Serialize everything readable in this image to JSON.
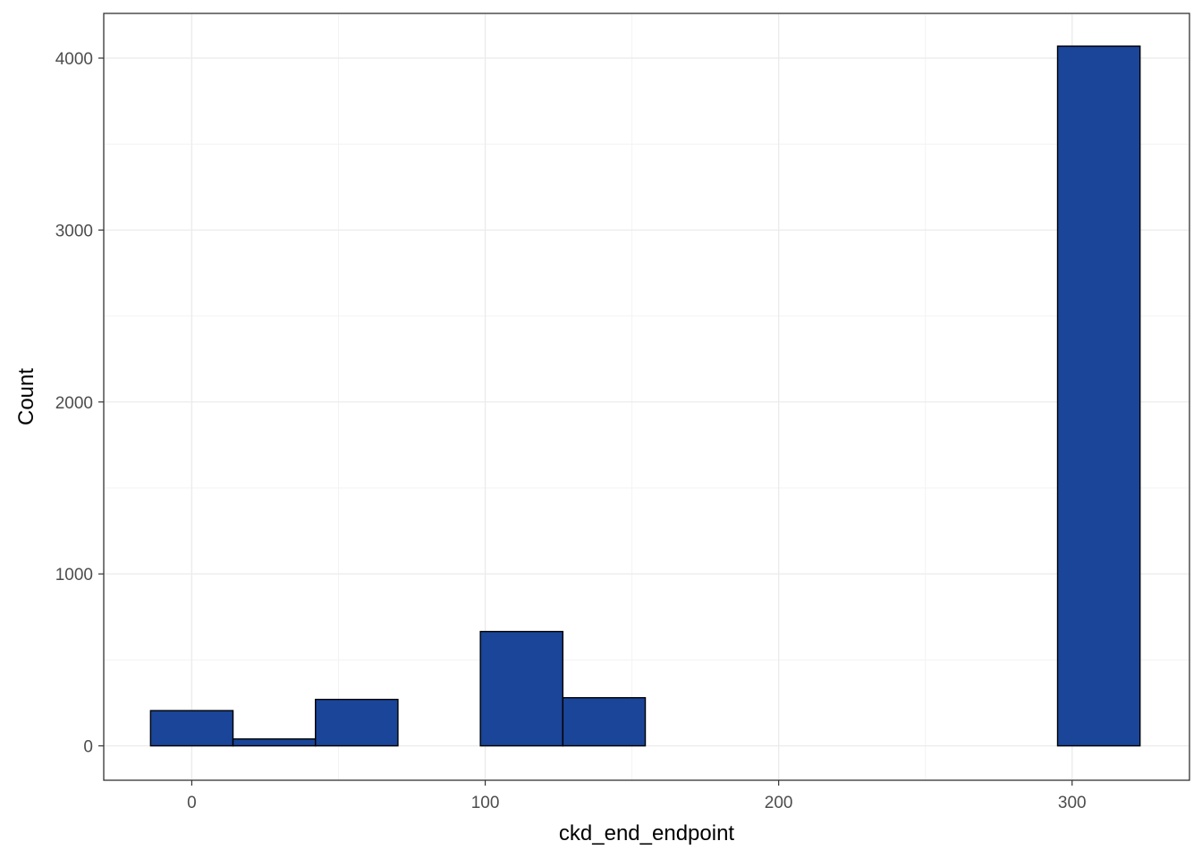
{
  "chart_data": {
    "type": "bar",
    "title": "",
    "xlabel": "ckd_end_endpoint",
    "ylabel": "Count",
    "xlim": [
      -30,
      340
    ],
    "ylim": [
      -200,
      4260
    ],
    "x_ticks": [
      0,
      100,
      200,
      300
    ],
    "y_ticks": [
      0,
      1000,
      2000,
      3000,
      4000
    ],
    "grid": true,
    "bin_width": 28.1,
    "bins": [
      {
        "x0": -14.05,
        "x1": 14.05,
        "count": 205
      },
      {
        "x0": 14.05,
        "x1": 42.15,
        "count": 40
      },
      {
        "x0": 42.15,
        "x1": 70.25,
        "count": 270
      },
      {
        "x0": 70.25,
        "x1": 98.35,
        "count": 0
      },
      {
        "x0": 98.35,
        "x1": 126.45,
        "count": 665
      },
      {
        "x0": 126.45,
        "x1": 154.55,
        "count": 280
      },
      {
        "x0": 154.55,
        "x1": 182.65,
        "count": 0
      },
      {
        "x0": 182.65,
        "x1": 210.75,
        "count": 0
      },
      {
        "x0": 210.75,
        "x1": 238.85,
        "count": 0
      },
      {
        "x0": 238.85,
        "x1": 266.95,
        "count": 0
      },
      {
        "x0": 266.95,
        "x1": 295.05,
        "count": 0
      },
      {
        "x0": 295.05,
        "x1": 323.15,
        "count": 4070
      }
    ],
    "colors": {
      "bar_fill": "#1a4598",
      "bar_stroke": "#000000",
      "grid_major": "#ebebeb",
      "grid_minor": "#f3f3f3",
      "panel_border": "#333333"
    }
  }
}
